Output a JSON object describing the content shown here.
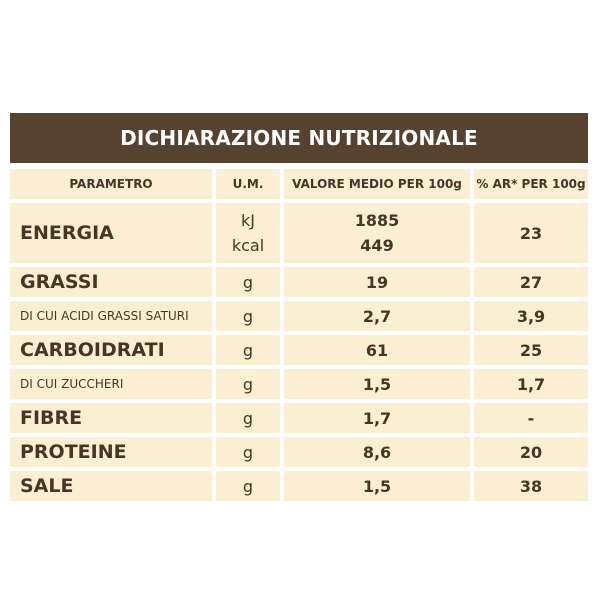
{
  "table": {
    "title": "DICHIARAZIONE NUTRIZIONALE",
    "headers": [
      "PARAMETRO",
      "U.M.",
      "VALORE MEDIO PER 100g",
      "% AR* PER 100g"
    ],
    "energy": {
      "label": "ENERGIA",
      "units": [
        "kJ",
        "kcal"
      ],
      "values": [
        "1885",
        "449"
      ],
      "ar": "23"
    },
    "rows": [
      {
        "label": "GRASSI",
        "unit": "g",
        "value": "19",
        "ar": "27"
      },
      {
        "label": "DI CUI ACIDI GRASSI SATURI",
        "unit": "g",
        "value": "2,7",
        "ar": "3,9"
      },
      {
        "label": "CARBOIDRATI",
        "unit": "g",
        "value": "61",
        "ar": "25"
      },
      {
        "label": "DI CUI ZUCCHERI",
        "unit": "g",
        "value": "1,5",
        "ar": "1,7"
      },
      {
        "label": "FIBRE",
        "unit": "g",
        "value": "1,7",
        "ar": "-"
      },
      {
        "label": "PROTEINE",
        "unit": "g",
        "value": "8,6",
        "ar": "20"
      },
      {
        "label": "SALE",
        "unit": "g",
        "value": "1,5",
        "ar": "38"
      }
    ]
  },
  "colors": {
    "title_bg": "#57412f",
    "cell_bg": "#fbefd3",
    "text": "#4a3426"
  }
}
